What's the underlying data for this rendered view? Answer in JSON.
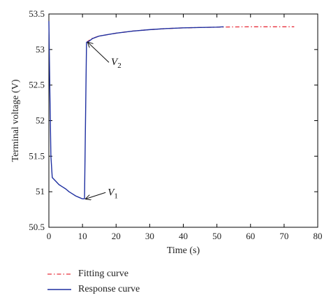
{
  "chart_data": {
    "type": "line",
    "xlabel": "Time (s)",
    "ylabel": "Terminal voltage (V)",
    "xlim": [
      0,
      80
    ],
    "ylim": [
      50.5,
      53.5
    ],
    "x_ticks": [
      "0",
      "10",
      "20",
      "30",
      "40",
      "50",
      "60",
      "70",
      "80"
    ],
    "y_ticks": [
      "50.5",
      "51",
      "51.5",
      "52",
      "52.5",
      "53",
      "53.5"
    ],
    "grid": false,
    "legend_position": "bottom-left",
    "series": [
      {
        "name": "Fitting curve",
        "color": "#e8303c",
        "style": "dash-dot",
        "x": [
          11.2,
          12,
          13,
          15,
          17.5,
          20,
          25,
          30,
          35,
          40,
          45,
          50,
          55,
          60,
          65,
          70,
          73
        ],
        "y": [
          53.1,
          53.13,
          53.16,
          53.19,
          53.21,
          53.23,
          53.26,
          53.28,
          53.295,
          53.305,
          53.31,
          53.315,
          53.318,
          53.32,
          53.32,
          53.32,
          53.32
        ]
      },
      {
        "name": "Response curve",
        "color": "#1e2fa0",
        "style": "solid",
        "x": [
          0,
          0.3,
          0.6,
          1,
          2,
          3,
          4,
          5,
          6,
          7,
          8,
          9,
          10,
          10.6,
          11.2,
          12,
          13,
          15,
          17.5,
          20,
          25,
          30,
          35,
          40,
          45,
          50,
          52
        ],
        "y": [
          53.4,
          52.4,
          51.5,
          51.2,
          51.15,
          51.1,
          51.07,
          51.04,
          51.0,
          50.97,
          50.94,
          50.92,
          50.9,
          50.9,
          53.1,
          53.12,
          53.155,
          53.19,
          53.21,
          53.23,
          53.26,
          53.28,
          53.295,
          53.305,
          53.31,
          53.315,
          53.32
        ]
      }
    ],
    "annotations": [
      {
        "label": "V",
        "sub": "1",
        "arrow_to": [
          10.6,
          50.9
        ],
        "text_at": [
          17.5,
          50.95
        ]
      },
      {
        "label": "V",
        "sub": "2",
        "arrow_to": [
          11.2,
          53.1
        ],
        "text_at": [
          18.5,
          52.78
        ]
      }
    ]
  }
}
